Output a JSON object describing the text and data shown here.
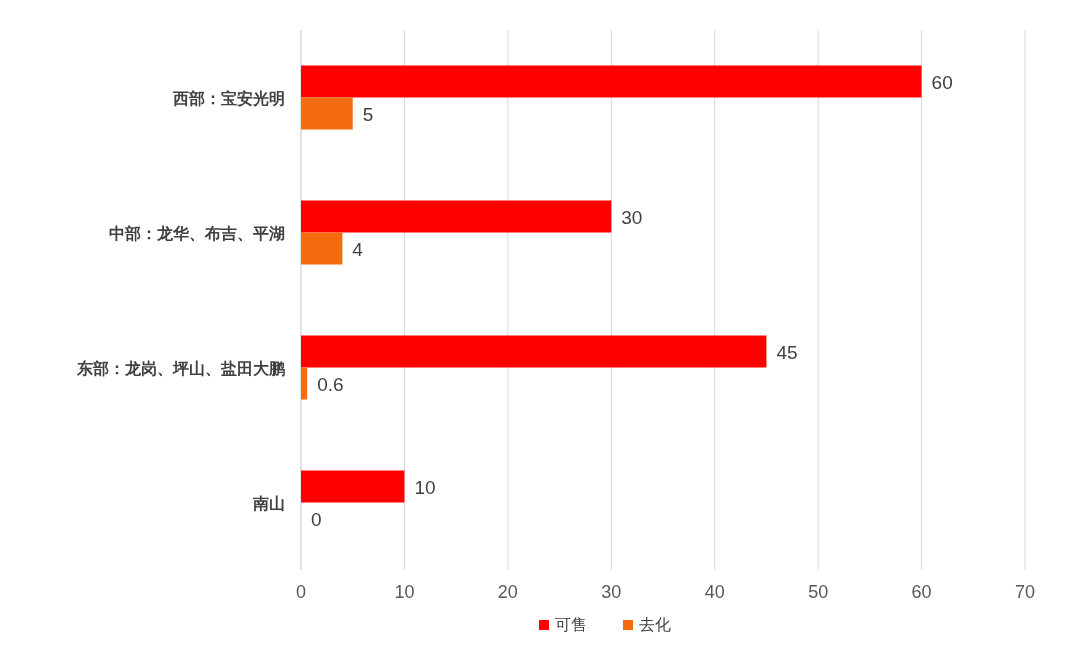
{
  "chart_data": {
    "type": "bar",
    "orientation": "horizontal",
    "categories": [
      "西部：宝安光明",
      "中部：龙华、布吉、平湖",
      "东部：龙岗、坪山、盐田大鹏",
      "南山"
    ],
    "series": [
      {
        "name": "可售",
        "color": "#ff0000",
        "values": [
          60,
          30,
          45,
          10
        ]
      },
      {
        "name": "去化",
        "color": "#f46b10",
        "values": [
          5,
          4,
          0.6,
          0
        ]
      }
    ],
    "xlim": [
      0,
      70
    ],
    "xticks": [
      0,
      10,
      20,
      30,
      40,
      50,
      60,
      70
    ],
    "grid": "x",
    "legend": "bottom",
    "data_labels": true
  }
}
